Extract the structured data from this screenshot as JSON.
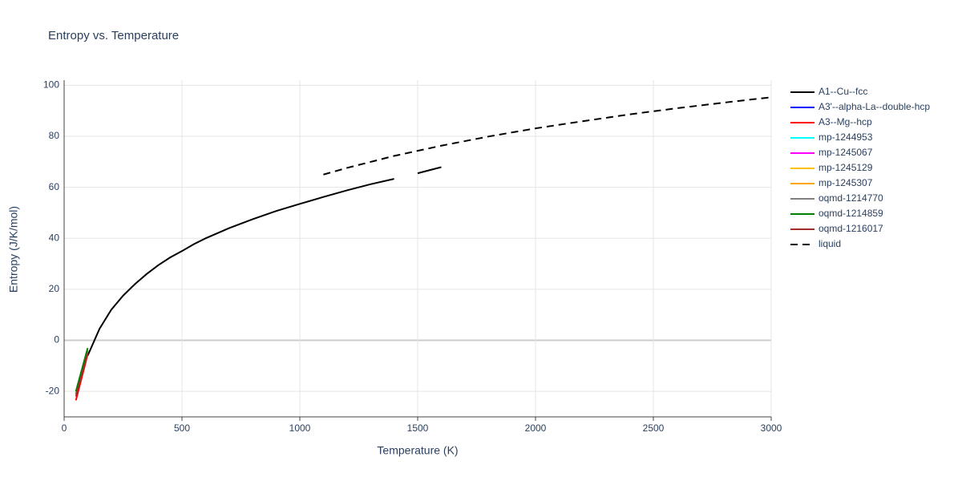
{
  "chart_data": {
    "type": "line",
    "title": "Entropy vs. Temperature",
    "x_label": "Temperature (K)",
    "y_label": "Entropy (J/K/mol)",
    "xlim": [
      0,
      3000
    ],
    "xticks": [
      0,
      500,
      1000,
      1500,
      2000,
      2500,
      3000
    ],
    "ylim": [
      -30,
      102
    ],
    "yticks": [
      -20,
      0,
      20,
      40,
      60,
      80,
      100
    ],
    "grid": true,
    "series": [
      {
        "name": "A1--Cu--fcc",
        "color": "#000000",
        "dash": "solid",
        "x": [
          100,
          150,
          200,
          250,
          300,
          350,
          400,
          450,
          500,
          550,
          600,
          700,
          800,
          900,
          1000,
          1100,
          1200,
          1300,
          1400,
          1450,
          1500,
          1600
        ],
        "values": [
          -6,
          4.5,
          12,
          17.5,
          22,
          26,
          29.5,
          32.5,
          35,
          37.7,
          40,
          44,
          47.5,
          50.7,
          53.5,
          56.2,
          58.8,
          61.2,
          63.3,
          null,
          65.5,
          67.9
        ]
      },
      {
        "name": "A3'--alpha-La--double-hcp",
        "color": "#0000ff",
        "dash": "solid",
        "x": [
          50,
          100
        ],
        "values": [
          -21,
          -4
        ]
      },
      {
        "name": "A3--Mg--hcp",
        "color": "#ff0000",
        "dash": "solid",
        "x": [
          50,
          100
        ],
        "values": [
          -23.5,
          -5.5
        ]
      },
      {
        "name": "mp-1244953",
        "color": "#00ffff",
        "dash": "solid",
        "x": [
          50,
          100
        ],
        "values": [
          -21,
          -4
        ]
      },
      {
        "name": "mp-1245067",
        "color": "#ff00ff",
        "dash": "solid",
        "x": [
          50,
          100
        ],
        "values": [
          -21,
          -4
        ]
      },
      {
        "name": "mp-1245129",
        "color": "#ffc000",
        "dash": "solid",
        "x": [
          50,
          100
        ],
        "values": [
          -21,
          -4
        ]
      },
      {
        "name": "mp-1245307",
        "color": "#ffa500",
        "dash": "solid",
        "x": [
          50,
          100
        ],
        "values": [
          -21,
          -4
        ]
      },
      {
        "name": "oqmd-1214770",
        "color": "#808080",
        "dash": "solid",
        "x": [
          50,
          100
        ],
        "values": [
          -21,
          -4
        ]
      },
      {
        "name": "oqmd-1214859",
        "color": "#008000",
        "dash": "solid",
        "x": [
          50,
          100
        ],
        "values": [
          -20,
          -3
        ]
      },
      {
        "name": "oqmd-1216017",
        "color": "#a52a2a",
        "dash": "solid",
        "x": [
          50,
          100
        ],
        "values": [
          -22,
          -5
        ]
      },
      {
        "name": "liquid",
        "color": "#000000",
        "dash": "dash",
        "x": [
          1100,
          1200,
          1400,
          1600,
          1800,
          2000,
          2200,
          2400,
          2600,
          2800,
          3000
        ],
        "values": [
          65,
          67.6,
          72.3,
          76.3,
          79.9,
          83.1,
          85.9,
          88.6,
          91.0,
          93.2,
          95.3
        ]
      }
    ]
  }
}
